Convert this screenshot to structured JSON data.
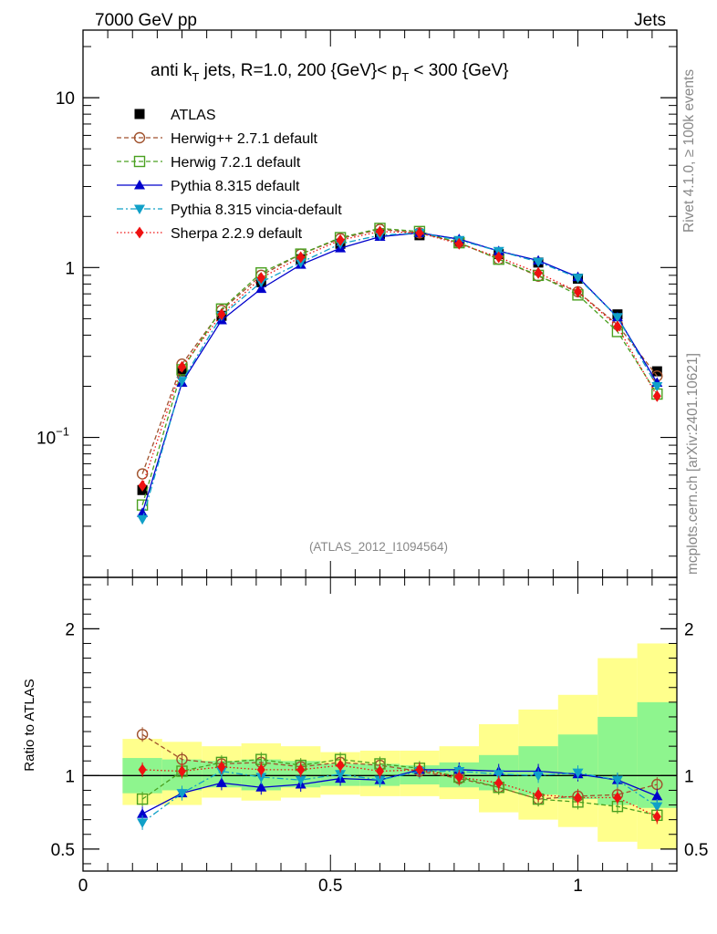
{
  "header": {
    "left": "7000 GeV pp",
    "right": "Jets"
  },
  "side_labels": {
    "rivet": "Rivet 4.1.0, ≥ 100k events",
    "mcplots": "mcplots.cern.ch [arXiv:2401.10621]"
  },
  "chart_data": {
    "type": "line",
    "title": {
      "prefix": "anti k",
      "sub_t": "T",
      "middle": " jets, R=1.0,  200 {GeV}< p",
      "sub_pt": "T",
      "suffix": " < 300 {GeV}"
    },
    "analysis_label": "(ATLAS_2012_I1094564)",
    "x": [
      0.12,
      0.2,
      0.28,
      0.36,
      0.44,
      0.52,
      0.6,
      0.68,
      0.76,
      0.84,
      0.92,
      1.0,
      1.08,
      1.16
    ],
    "xlim": [
      0,
      1.2
    ],
    "main_panel": {
      "ylog": true,
      "ylim": [
        0.015,
        25
      ],
      "yticks": [
        {
          "value": 10,
          "label": "10"
        },
        {
          "value": 1,
          "label": "1"
        },
        {
          "value": 0.1,
          "label": "10",
          "sup": "−1"
        }
      ]
    },
    "ratio_panel": {
      "ylabel": "Ratio to ATLAS",
      "ylim": [
        0.35,
        2.35
      ],
      "yticks": [
        {
          "value": 0.5,
          "label": "0.5"
        },
        {
          "value": 1,
          "label": "1"
        },
        {
          "value": 2,
          "label": "2"
        }
      ],
      "xticks": [
        {
          "value": 0,
          "label": "0"
        },
        {
          "value": 0.5,
          "label": "0.5"
        },
        {
          "value": 1,
          "label": "1"
        }
      ],
      "band_inner": [
        0.88,
        0.9,
        0.92,
        0.9,
        0.92,
        0.93,
        0.93,
        0.94,
        0.92,
        0.9,
        0.87,
        0.84,
        0.8,
        0.78
      ],
      "band_inner_hi": [
        1.12,
        1.11,
        1.1,
        1.11,
        1.1,
        1.08,
        1.08,
        1.07,
        1.09,
        1.14,
        1.2,
        1.28,
        1.4,
        1.5
      ],
      "band_outer": [
        0.8,
        0.8,
        0.85,
        0.83,
        0.85,
        0.87,
        0.86,
        0.86,
        0.84,
        0.75,
        0.7,
        0.65,
        0.55,
        0.5
      ],
      "band_outer_hi": [
        1.25,
        1.23,
        1.2,
        1.22,
        1.2,
        1.16,
        1.17,
        1.17,
        1.2,
        1.35,
        1.45,
        1.55,
        1.8,
        1.9
      ],
      "band_colors": {
        "inner": "#8ef58e",
        "outer": "#ffff8c"
      }
    },
    "series": [
      {
        "name": "ATLAS",
        "color": "#000000",
        "marker": "square-filled",
        "values": [
          0.049,
          0.245,
          0.52,
          0.82,
          1.12,
          1.38,
          1.58,
          1.55,
          1.42,
          1.2,
          1.07,
          0.86,
          0.53,
          0.245
        ],
        "ratio": [
          1,
          1,
          1,
          1,
          1,
          1,
          1,
          1,
          1,
          1,
          1,
          1,
          1,
          1
        ]
      },
      {
        "name": "Herwig++ 2.7.1 default",
        "color": "#a0522d",
        "marker": "circle-open",
        "dash": "5,3",
        "values": [
          0.061,
          0.27,
          0.56,
          0.9,
          1.2,
          1.48,
          1.68,
          1.6,
          1.4,
          1.12,
          0.89,
          0.72,
          0.46,
          0.23
        ],
        "ratio": [
          1.28,
          1.11,
          1.08,
          1.09,
          1.06,
          1.09,
          1.07,
          1.03,
          0.98,
          0.92,
          0.84,
          0.86,
          0.87,
          0.94
        ]
      },
      {
        "name": "Herwig 7.2.1 default",
        "color": "#4aa020",
        "marker": "square-open",
        "dash": "5,3",
        "values": [
          0.04,
          0.25,
          0.57,
          0.93,
          1.2,
          1.5,
          1.7,
          1.63,
          1.4,
          1.12,
          0.9,
          0.69,
          0.42,
          0.18
        ],
        "ratio": [
          0.84,
          1.03,
          1.09,
          1.11,
          1.07,
          1.11,
          1.08,
          1.05,
          0.99,
          0.92,
          0.84,
          0.82,
          0.79,
          0.73
        ]
      },
      {
        "name": "Pythia 8.315 default",
        "color": "#0000cc",
        "marker": "triangle-up-filled",
        "dash": "",
        "values": [
          0.036,
          0.21,
          0.49,
          0.75,
          1.04,
          1.3,
          1.52,
          1.6,
          1.47,
          1.25,
          1.1,
          0.88,
          0.51,
          0.21
        ],
        "ratio": [
          0.74,
          0.88,
          0.95,
          0.92,
          0.94,
          0.98,
          0.97,
          1.04,
          1.04,
          1.03,
          1.03,
          1.01,
          0.97,
          0.86
        ]
      },
      {
        "name": "Pythia 8.315 vincia-default",
        "color": "#10a0c8",
        "marker": "triangle-down-filled",
        "dash": "7,3,2,3",
        "values": [
          0.033,
          0.215,
          0.52,
          0.82,
          1.07,
          1.38,
          1.55,
          1.6,
          1.45,
          1.25,
          1.08,
          0.87,
          0.51,
          0.2
        ],
        "ratio": [
          0.68,
          0.88,
          1.03,
          0.99,
          0.97,
          1.01,
          0.97,
          1.03,
          1.03,
          1.01,
          1.0,
          1.02,
          0.97,
          0.79
        ]
      },
      {
        "name": "Sherpa 2.2.9 default",
        "color": "#ee1111",
        "marker": "diamond-filled",
        "dash": "1.5,2.5",
        "values": [
          0.052,
          0.26,
          0.53,
          0.87,
          1.15,
          1.45,
          1.63,
          1.6,
          1.38,
          1.15,
          0.93,
          0.72,
          0.45,
          0.175
        ],
        "ratio": [
          1.04,
          1.03,
          1.06,
          1.04,
          1.04,
          1.07,
          1.03,
          1.04,
          0.99,
          0.95,
          0.87,
          0.85,
          0.85,
          0.72
        ]
      }
    ]
  }
}
